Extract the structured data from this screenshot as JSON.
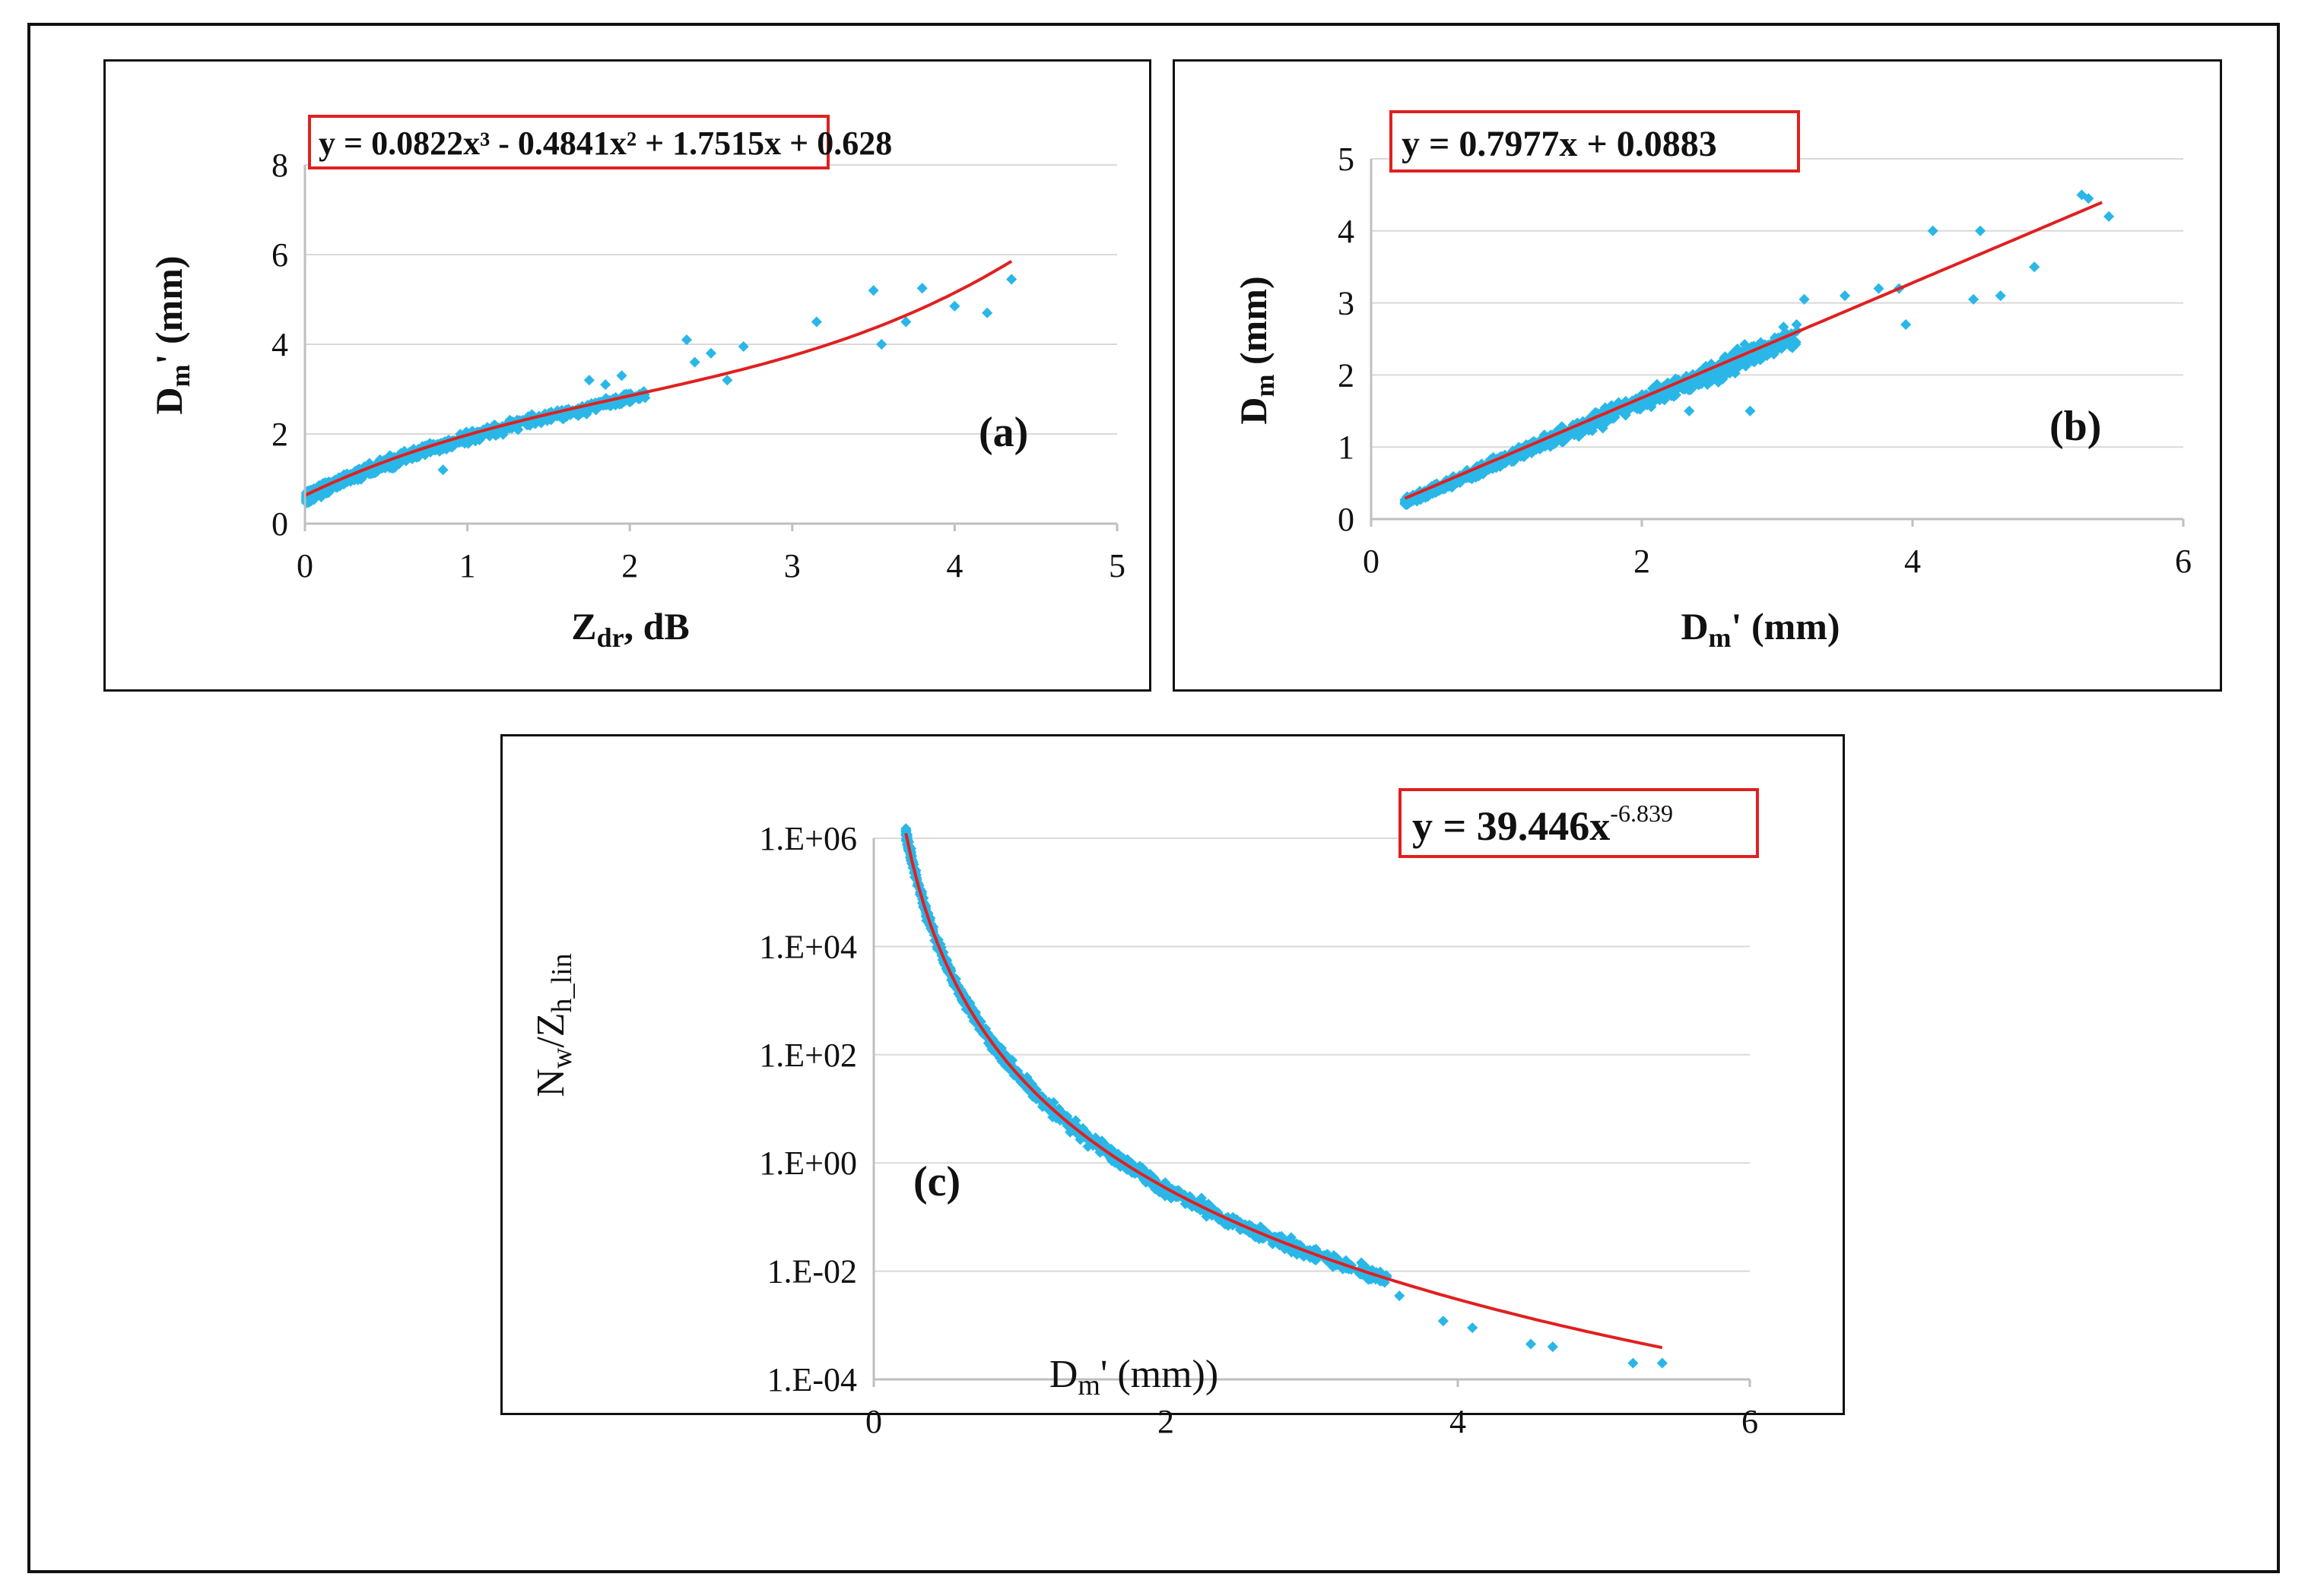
{
  "colors": {
    "points": "#2ab7e8",
    "fit": "#e02020",
    "grid": "#d9d9d9",
    "eq_box": "#e02020"
  },
  "chart_data": [
    {
      "id": "a",
      "type": "scatter",
      "panel_label": "(a)",
      "xlabel_main": "Z",
      "xlabel_sub": "dr",
      "xlabel_tail": ", dB",
      "ylabel_main": "D",
      "ylabel_sub": "m",
      "ylabel_tail": "' (mm)",
      "xlim": [
        0,
        5
      ],
      "ylim": [
        0,
        8
      ],
      "x_ticks": [
        0,
        1,
        2,
        3,
        4,
        5
      ],
      "y_ticks": [
        0,
        2,
        4,
        6,
        8
      ],
      "grid": true,
      "equation": "y = 0.0822x³ - 0.4841x² + 1.7515x + 0.628",
      "fit": {
        "kind": "poly3",
        "coef": [
          0.0822,
          -0.4841,
          1.7515,
          0.628
        ],
        "x_range": [
          0,
          4.35
        ]
      },
      "scatter_outliers": [
        [
          2.35,
          4.1
        ],
        [
          2.5,
          3.8
        ],
        [
          2.7,
          3.95
        ],
        [
          2.6,
          3.2
        ],
        [
          3.15,
          4.5
        ],
        [
          3.5,
          5.2
        ],
        [
          3.55,
          4.0
        ],
        [
          3.7,
          4.5
        ],
        [
          3.8,
          5.25
        ],
        [
          4.0,
          4.85
        ],
        [
          4.2,
          4.7
        ],
        [
          4.35,
          5.45
        ],
        [
          1.75,
          3.2
        ],
        [
          1.85,
          3.1
        ],
        [
          1.95,
          3.3
        ],
        [
          0.85,
          1.2
        ],
        [
          2.4,
          3.6
        ]
      ]
    },
    {
      "id": "b",
      "type": "scatter",
      "panel_label": "(b)",
      "xlabel_main": "D",
      "xlabel_sub": "m",
      "xlabel_tail": "' (mm)",
      "ylabel_main": "D",
      "ylabel_sub": "m",
      "ylabel_tail": " (mm)",
      "xlim": [
        0,
        6
      ],
      "ylim": [
        0,
        5
      ],
      "x_ticks": [
        0,
        2,
        4,
        6
      ],
      "y_ticks": [
        0,
        1,
        2,
        3,
        4,
        5
      ],
      "grid": true,
      "equation": "y = 0.7977x + 0.0883",
      "fit": {
        "kind": "linear",
        "coef": [
          0.7977,
          0.0883
        ],
        "x_range": [
          0.25,
          5.4
        ]
      },
      "scatter_outliers": [
        [
          5.25,
          4.5
        ],
        [
          5.3,
          4.45
        ],
        [
          5.45,
          4.2
        ],
        [
          4.15,
          4.0
        ],
        [
          4.5,
          4.0
        ],
        [
          4.45,
          3.05
        ],
        [
          4.65,
          3.1
        ],
        [
          4.9,
          3.5
        ],
        [
          3.95,
          2.7
        ],
        [
          3.9,
          3.2
        ],
        [
          3.5,
          3.1
        ],
        [
          3.75,
          3.2
        ],
        [
          2.8,
          1.5
        ],
        [
          2.6,
          2.2
        ],
        [
          2.35,
          1.5
        ],
        [
          3.2,
          3.05
        ]
      ]
    },
    {
      "id": "c",
      "type": "scatter",
      "panel_label": "(c)",
      "xlabel_main": "D",
      "xlabel_sub": "m",
      "xlabel_tail": "' (mm))",
      "ylabel_main": "N",
      "ylabel_sub": "w",
      "ylabel_mid": "/Z",
      "ylabel_sub2": "h_lin",
      "xlim": [
        0,
        6
      ],
      "ylim_log10": [
        -4,
        6
      ],
      "x_ticks": [
        0,
        2,
        4,
        6
      ],
      "y_ticks": [
        "1.E-04",
        "1.E-02",
        "1.E+00",
        "1.E+02",
        "1.E+04",
        "1.E+06"
      ],
      "y_tick_exps": [
        -4,
        -2,
        0,
        2,
        4,
        6
      ],
      "grid": true,
      "equation_main": "y = 39.446x",
      "equation_exp": "-6.839",
      "fit": {
        "kind": "power",
        "coef": [
          39.446,
          -6.839
        ],
        "x_range": [
          0.22,
          5.4
        ]
      },
      "scatter_outliers": [
        [
          4.1,
          0.0009
        ],
        [
          4.5,
          0.00045
        ],
        [
          4.65,
          0.0004
        ],
        [
          5.2,
          0.0002
        ],
        [
          5.4,
          0.0002
        ],
        [
          3.6,
          0.0035
        ],
        [
          3.9,
          0.0012
        ]
      ]
    }
  ]
}
